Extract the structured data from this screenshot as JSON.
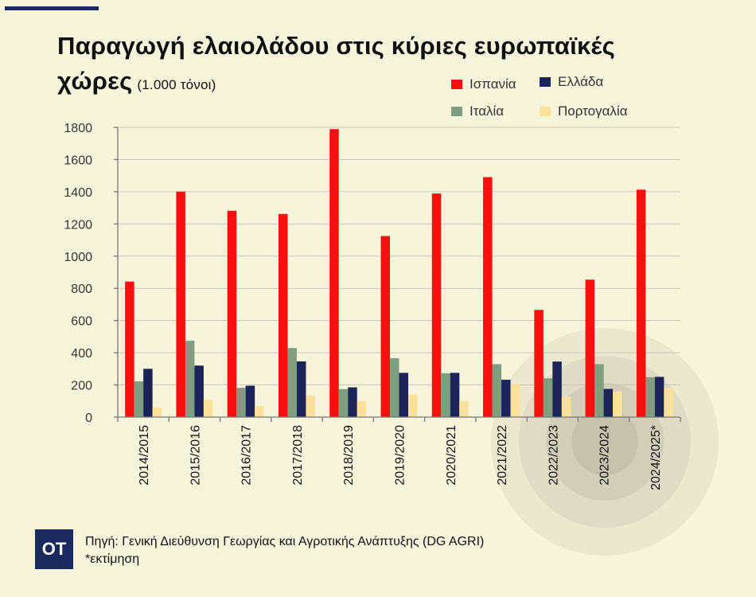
{
  "header": {
    "title": "Παραγωγή ελαιολάδου στις κύριες ευρωπαϊκές χώρες",
    "unit": "(1.000 τόνοι)"
  },
  "legend": [
    {
      "name": "Ισπανία",
      "color": "#f50f0f"
    },
    {
      "name": "Ελλάδα",
      "color": "#1c2358"
    },
    {
      "name": "Ιταλία",
      "color": "#7e9e7f"
    },
    {
      "name": "Πορτογαλία",
      "color": "#fde19a"
    }
  ],
  "chart_data": {
    "type": "bar",
    "title": "Παραγωγή ελαιολάδου στις κύριες ευρωπαϊκές χώρες",
    "ylabel": "(1.000 τόνοι)",
    "ylim": [
      0,
      1800
    ],
    "yticks": [
      0,
      200,
      400,
      600,
      800,
      1000,
      1200,
      1400,
      1600,
      1800
    ],
    "grid": true,
    "legend_position": "top-right",
    "categories": [
      "2014/2015",
      "2015/2016",
      "2016/2017",
      "2017/2018",
      "2018/2019",
      "2019/2020",
      "2020/2021",
      "2021/2022",
      "2022/2023",
      "2023/2024",
      "2024/2025*"
    ],
    "series": [
      {
        "name": "Ισπανία",
        "color": "#f50f0f",
        "values": [
          842,
          1401,
          1282,
          1262,
          1789,
          1125,
          1389,
          1491,
          666,
          854,
          1413
        ]
      },
      {
        "name": "Ιταλία",
        "color": "#7e9e7f",
        "values": [
          222,
          474,
          182,
          429,
          174,
          366,
          273,
          329,
          241,
          329,
          248
        ]
      },
      {
        "name": "Ελλάδα",
        "color": "#1c2358",
        "values": [
          300,
          320,
          195,
          346,
          185,
          275,
          275,
          232,
          345,
          175,
          250
        ]
      },
      {
        "name": "Πορτογαλία",
        "color": "#fde19a",
        "values": [
          61,
          109,
          69,
          134,
          100,
          140,
          100,
          206,
          126,
          160,
          180
        ]
      }
    ]
  },
  "footer": {
    "logo": "OT",
    "source": "Πηγή: Γενική Διεύθυνση Γεωργίας και Αγροτικής Ανάπτυξης (DG AGRI)",
    "note": "*εκτίμηση"
  }
}
